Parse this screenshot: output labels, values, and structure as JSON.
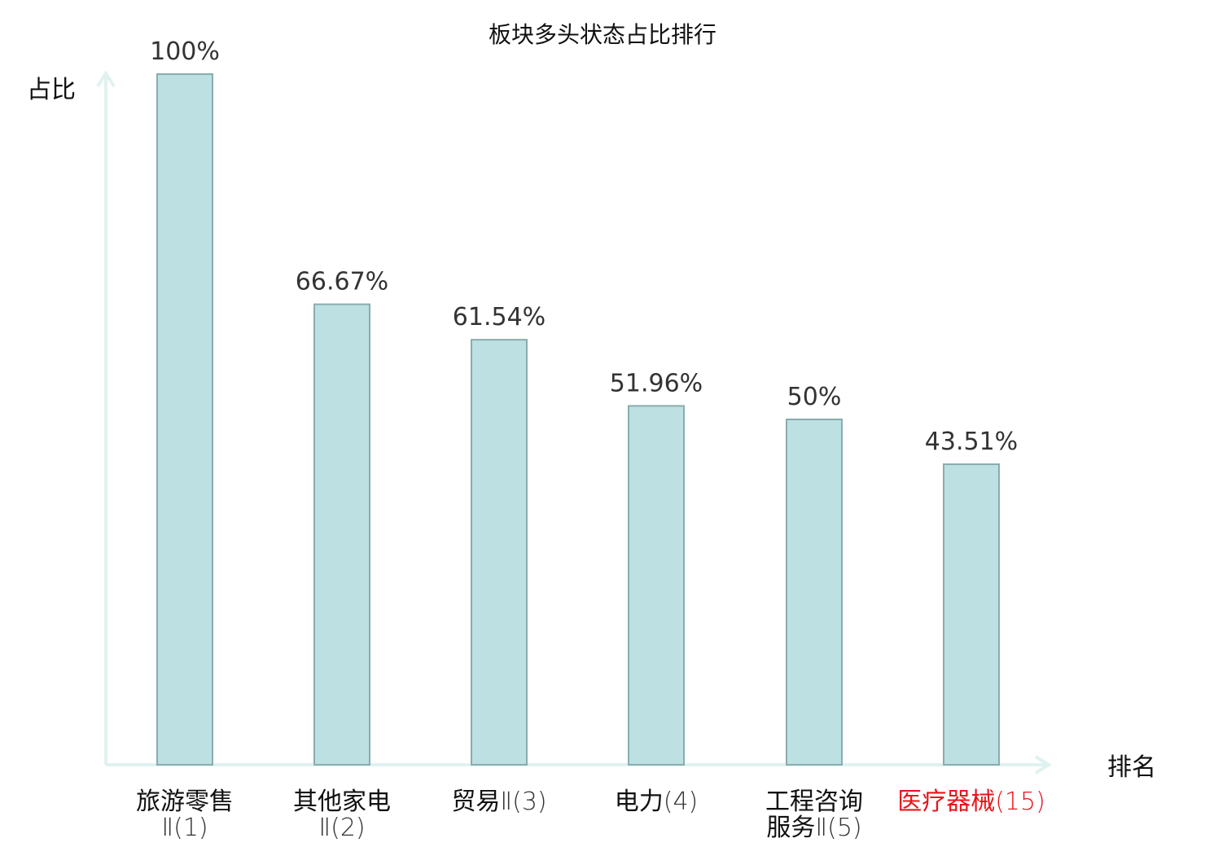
{
  "chart_data": {
    "type": "bar",
    "title": "板块多头状态占比排行",
    "ylabel": "占比",
    "xlabel": "排名",
    "ylim": [
      0,
      100
    ],
    "grid": false,
    "categories": [
      {
        "name": "旅游零售",
        "rank": "Ⅱ(1)",
        "highlight": false
      },
      {
        "name": "其他家电",
        "rank": "Ⅱ(2)",
        "highlight": false
      },
      {
        "name": "贸易",
        "rank": "Ⅱ(3)",
        "highlight": false
      },
      {
        "name": "电力",
        "rank": "(4)",
        "highlight": false
      },
      {
        "name": "工程咨询服务",
        "rank": "Ⅱ(5)",
        "highlight": false
      },
      {
        "name": "医疗器械",
        "rank": "(15)",
        "highlight": true
      }
    ],
    "values": [
      100,
      66.67,
      61.54,
      51.96,
      50,
      43.51
    ],
    "value_labels": [
      "100%",
      "66.67%",
      "61.54%",
      "51.96%",
      "50%",
      "43.51%"
    ]
  },
  "colors": {
    "bar_fill": "#bde0e3",
    "bar_stroke": "#8aacae",
    "axis": "#e0f2ef",
    "text": "#111111",
    "value_text": "#333333",
    "highlight": "#e8141b"
  }
}
